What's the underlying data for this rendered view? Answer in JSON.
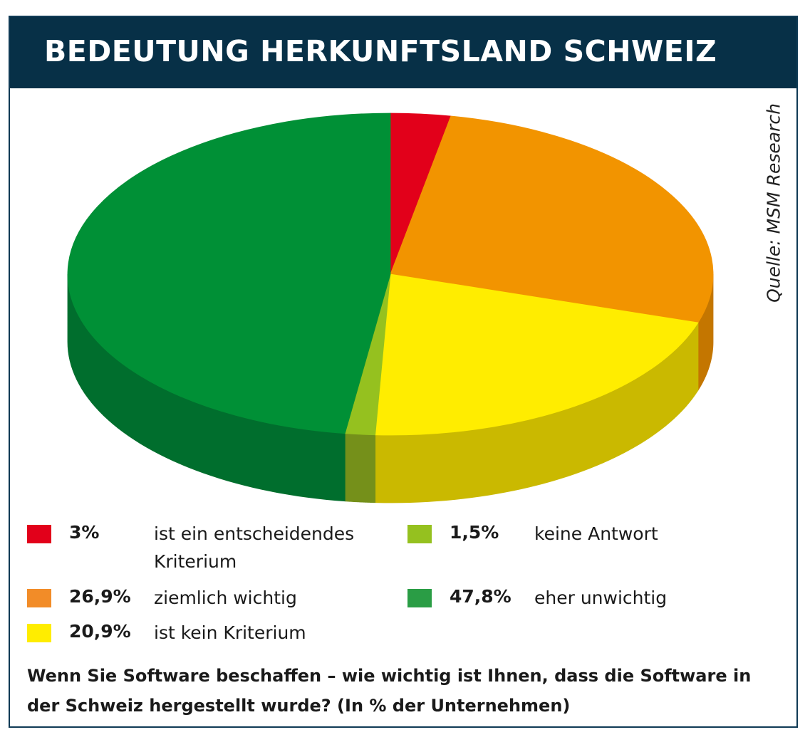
{
  "title": "BEDEUTUNG HERKUNFTSLAND SCHWEIZ",
  "source": "Quelle: MSM Research",
  "question": "Wenn Sie Software beschaffen – wie wichtig ist Ihnen, dass die Software in der Schweiz hergestellt wurde? (In % der Unternehmen)",
  "chart_data": {
    "type": "pie",
    "title": "BEDEUTUNG HERKUNFTSLAND SCHWEIZ",
    "start": "top, clockwise",
    "slices": [
      {
        "label": "ist ein entscheidendes Kriterium",
        "value": 3.0,
        "value_label": "3%",
        "color": "#e2001a",
        "side_color": "#a80012",
        "legend_color": "#e2001a"
      },
      {
        "label": "ziemlich wichtig",
        "value": 26.9,
        "value_label": "26,9%",
        "color": "#f29400",
        "side_color": "#c47600",
        "legend_color": "#f28c28"
      },
      {
        "label": "ist kein Kriterium",
        "value": 20.9,
        "value_label": "20,9%",
        "color": "#ffed00",
        "side_color": "#cab900",
        "legend_color": "#ffed00"
      },
      {
        "label": "keine Antwort",
        "value": 1.5,
        "value_label": "1,5%",
        "color": "#95c11f",
        "side_color": "#75901a",
        "legend_color": "#95c11f"
      },
      {
        "label": "eher unwichtig",
        "value": 47.8,
        "value_label": "47,8%",
        "color": "#009036",
        "side_color": "#006e2d",
        "legend_color": "#2a9d45"
      }
    ]
  }
}
